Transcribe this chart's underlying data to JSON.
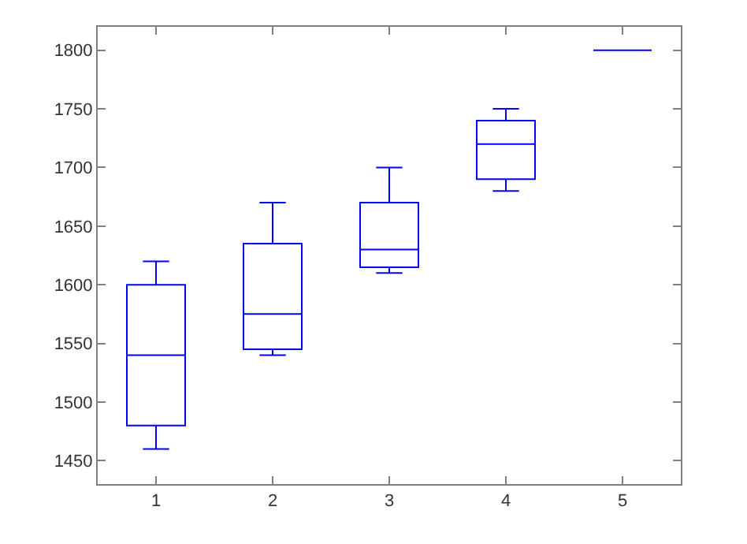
{
  "chart_data": {
    "type": "box",
    "categories": [
      "1",
      "2",
      "3",
      "4",
      "5"
    ],
    "boxes": [
      {
        "low": 1460,
        "q1": 1480,
        "median": 1540,
        "q3": 1600,
        "high": 1620
      },
      {
        "low": 1540,
        "q1": 1545,
        "median": 1575,
        "q3": 1635,
        "high": 1670
      },
      {
        "low": 1610,
        "q1": 1615,
        "median": 1630,
        "q3": 1670,
        "high": 1700
      },
      {
        "low": 1680,
        "q1": 1690,
        "median": 1720,
        "q3": 1740,
        "high": 1750
      },
      {
        "low": 1800,
        "q1": 1800,
        "median": 1800,
        "q3": 1800,
        "high": 1800
      }
    ],
    "color": "#0000ff",
    "ylim": [
      1430,
      1820
    ],
    "yticks": [
      1450,
      1500,
      1550,
      1600,
      1650,
      1700,
      1750,
      1800
    ],
    "legend": false
  }
}
